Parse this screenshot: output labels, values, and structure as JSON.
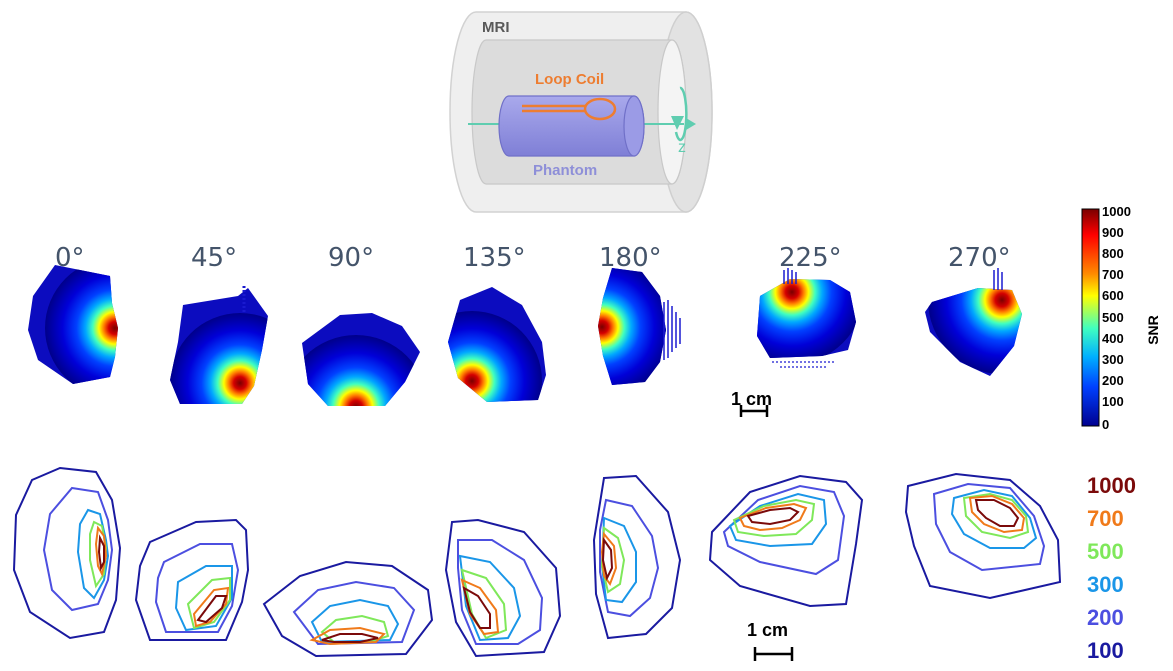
{
  "schematic": {
    "mri_label": "MRI",
    "coil_label": "Loop Coil",
    "phantom_label": "Phantom",
    "axis_label": "z",
    "colors": {
      "coil": "#ed7d31",
      "phantom": "#8e8fd8",
      "axis": "#5fcdb0",
      "mri_label": "#595959"
    }
  },
  "angles": [
    "0°",
    "45°",
    "90°",
    "135°",
    "180°",
    "225°",
    "270°"
  ],
  "colorbar": {
    "label": "SNR",
    "ticks": [
      "1000",
      "900",
      "800",
      "700",
      "600",
      "500",
      "400",
      "300",
      "200",
      "100",
      "0"
    ]
  },
  "scale_bars": {
    "top": "1 cm",
    "bottom": "1 cm"
  },
  "contour_levels": [
    {
      "value": "1000",
      "color": "#7b0a0a"
    },
    {
      "value": "700",
      "color": "#f07a1a"
    },
    {
      "value": "500",
      "color": "#7fe85a"
    },
    {
      "value": "300",
      "color": "#1a96e8"
    },
    {
      "value": "200",
      "color": "#4c4fe0"
    },
    {
      "value": "100",
      "color": "#1a1aa0"
    }
  ]
}
